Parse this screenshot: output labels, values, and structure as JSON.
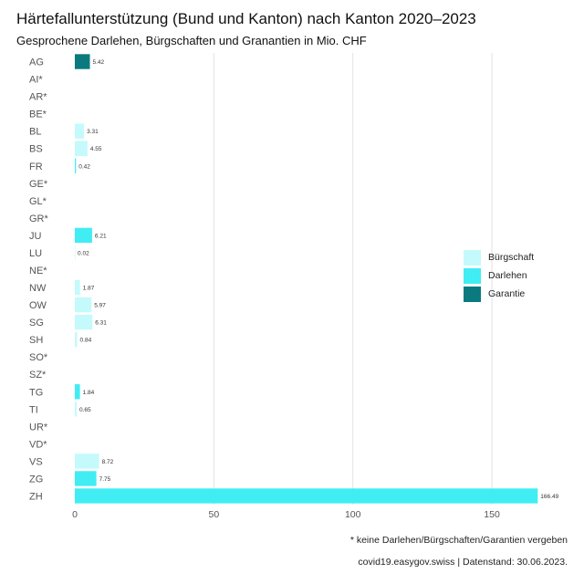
{
  "title": "Härtefallunterstützung (Bund und Kanton) nach Kanton 2020–2023",
  "subtitle": "Gesprochene Darlehen, Bürgschaften und Granantien in Mio. CHF",
  "footnote": "* keine Darlehen/Bürgschaften/Garantien vergeben",
  "source": "covid19.easygov.swiss | Datenstand: 30.06.2023.",
  "colors": {
    "Bürgschaft": "#c4fafb",
    "Darlehen": "#40edf3",
    "Garantie": "#0b7a7f",
    "grid": "#e2e2e2",
    "axis_text": "#555555"
  },
  "chart_data": {
    "type": "bar",
    "orientation": "horizontal",
    "stacked": true,
    "grid": true,
    "legend_position": "right",
    "xlim": [
      0,
      170
    ],
    "xticks": [
      0,
      50,
      100,
      150
    ],
    "categories": [
      "AG",
      "AI*",
      "AR*",
      "BE*",
      "BL",
      "BS",
      "FR",
      "GE*",
      "GL*",
      "GR*",
      "JU",
      "LU",
      "NE*",
      "NW",
      "OW",
      "SG",
      "SH",
      "SO*",
      "SZ*",
      "TG",
      "TI",
      "UR*",
      "VD*",
      "VS",
      "ZG",
      "ZH"
    ],
    "series": [
      {
        "name": "Bürgschaft",
        "values": [
          0,
          0,
          0,
          0,
          3.31,
          4.55,
          0,
          0,
          0,
          0,
          0,
          0.02,
          0,
          1.87,
          5.97,
          6.31,
          0.84,
          0,
          0,
          0,
          0.65,
          0,
          0,
          8.72,
          0,
          0
        ]
      },
      {
        "name": "Darlehen",
        "values": [
          0,
          0,
          0,
          0,
          0,
          0,
          0.42,
          0,
          0,
          0,
          6.21,
          0,
          0,
          0,
          0,
          0,
          0,
          0,
          0,
          1.84,
          0,
          0,
          0,
          0,
          7.75,
          166.49
        ]
      },
      {
        "name": "Garantie",
        "values": [
          5.42,
          0,
          0,
          0,
          0,
          0,
          0,
          0,
          0,
          0,
          0,
          0,
          0,
          0,
          0,
          0,
          0,
          0,
          0,
          0,
          0,
          0,
          0,
          0,
          0,
          0
        ]
      }
    ],
    "data_labels": [
      "5.42",
      "",
      "",
      "",
      "3.31",
      "4.55",
      "0.42",
      "",
      "",
      "",
      "6.21",
      "0.02",
      "",
      "1.87",
      "5.97",
      "6.31",
      "0.84",
      "",
      "",
      "1.84",
      "0.65",
      "",
      "",
      "8.72",
      "7.75",
      "166.49"
    ]
  }
}
